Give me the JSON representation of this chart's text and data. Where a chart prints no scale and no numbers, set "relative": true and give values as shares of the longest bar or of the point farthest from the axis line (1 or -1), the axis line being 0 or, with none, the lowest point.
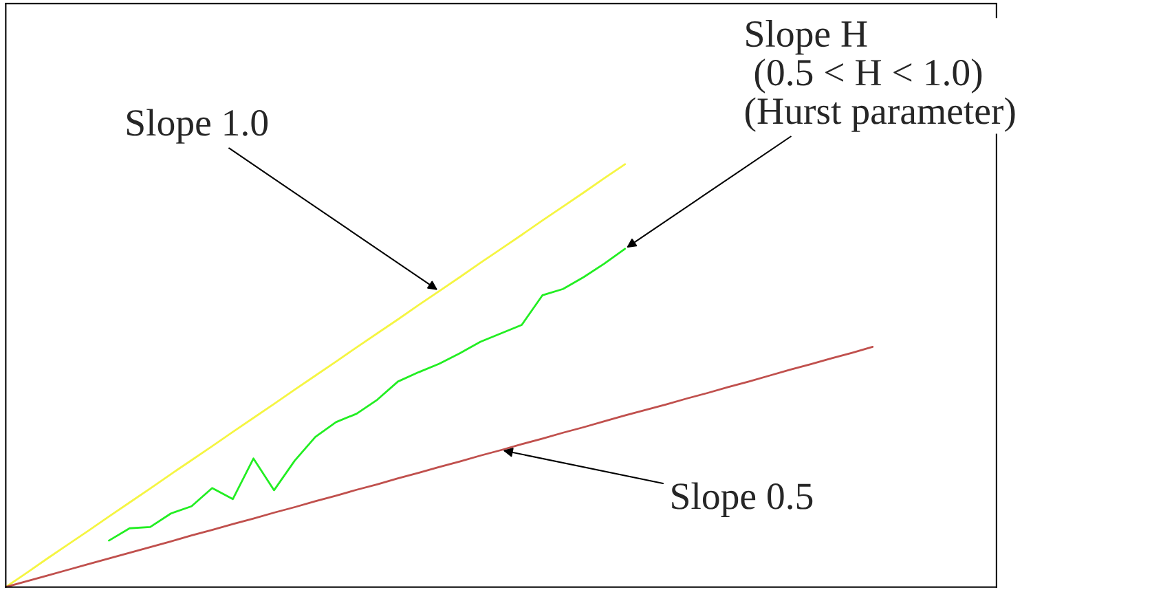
{
  "chart_data": {
    "type": "line",
    "relative": true,
    "marker": "none",
    "line_style": "solid",
    "categories": [
      null,
      null,
      null,
      null,
      null,
      null,
      null,
      null,
      null,
      null,
      null,
      null,
      null,
      null,
      null,
      null,
      null,
      null,
      null,
      null,
      null,
      null,
      null,
      null,
      null,
      null,
      null,
      null,
      null,
      null,
      null,
      null,
      null,
      null,
      null,
      null,
      null,
      null,
      null,
      null,
      null,
      null,
      null,
      null,
      null,
      null,
      null,
      null,
      null
    ],
    "series": [
      {
        "color": "#f5f542",
        "values": [
          0,
          0.033,
          0.067,
          0.1,
          0.133,
          0.167,
          0.2,
          0.233,
          0.267,
          0.3,
          0.333,
          0.367,
          0.4,
          0.433,
          0.467,
          0.5,
          0.533,
          0.567,
          0.6,
          0.633,
          0.667,
          0.7,
          0.733,
          0.767,
          0.8,
          0.833,
          0.867,
          0.9,
          0.933,
          0.967,
          1.0,
          null,
          null,
          null,
          null,
          null,
          null,
          null,
          null,
          null,
          null,
          null,
          null,
          null,
          null,
          null,
          null,
          null,
          null
        ]
      },
      {
        "color": "#c0504d",
        "values": [
          0,
          0.0135,
          0.027,
          0.0406,
          0.0541,
          0.0676,
          0.0811,
          0.0946,
          0.108,
          0.122,
          0.135,
          0.149,
          0.162,
          0.176,
          0.189,
          0.203,
          0.216,
          0.23,
          0.243,
          0.257,
          0.27,
          0.284,
          0.297,
          0.311,
          0.324,
          0.338,
          0.351,
          0.365,
          0.378,
          0.392,
          0.406,
          0.419,
          0.432,
          0.446,
          0.459,
          0.473,
          0.486,
          0.5,
          0.514,
          0.527,
          0.541,
          0.554,
          0.568,
          null,
          null,
          null,
          null,
          null,
          null
        ]
      },
      {
        "color": "#22ee22",
        "values": [
          null,
          null,
          null,
          null,
          null,
          0.11,
          0.139,
          0.142,
          0.174,
          0.191,
          0.234,
          0.208,
          0.304,
          0.229,
          0.299,
          0.355,
          0.39,
          0.41,
          0.443,
          0.486,
          0.508,
          0.528,
          0.553,
          0.58,
          0.6,
          0.62,
          0.69,
          0.705,
          0.733,
          0.765,
          0.8,
          null,
          null,
          null,
          null,
          null,
          null,
          null,
          null,
          null,
          null,
          null,
          null,
          null,
          null,
          null,
          null,
          null,
          null
        ]
      }
    ],
    "annotations": [
      "Slope 1.0",
      "Slope H\n (0.5 < H < 1.0)\n(Hurst parameter)",
      "Slope 0.5"
    ]
  }
}
